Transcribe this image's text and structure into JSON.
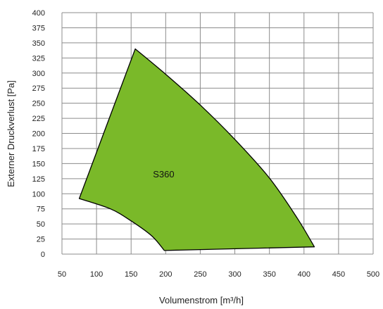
{
  "chart_data": {
    "type": "area",
    "title": "",
    "xlabel": "Volumenstrom [m³/h]",
    "ylabel": "Externer Druckverlust [Pa]",
    "xlim": [
      50,
      500
    ],
    "ylim": [
      0,
      400
    ],
    "x_ticks": [
      50,
      100,
      150,
      200,
      250,
      300,
      350,
      400,
      450,
      500
    ],
    "y_ticks": [
      0,
      25,
      50,
      75,
      100,
      125,
      150,
      175,
      200,
      225,
      250,
      275,
      300,
      325,
      350,
      375,
      400
    ],
    "grid": true,
    "legend": "none",
    "series": [
      {
        "name": "S360",
        "color": "#7ab929",
        "outline_color": "#000000",
        "points": [
          {
            "x": 156,
            "y": 340
          },
          {
            "x": 200,
            "y": 298
          },
          {
            "x": 250,
            "y": 247
          },
          {
            "x": 300,
            "y": 190
          },
          {
            "x": 350,
            "y": 126
          },
          {
            "x": 390,
            "y": 60
          },
          {
            "x": 415,
            "y": 12
          },
          {
            "x": 198,
            "y": 6
          },
          {
            "x": 180,
            "y": 30
          },
          {
            "x": 150,
            "y": 55
          },
          {
            "x": 120,
            "y": 75
          },
          {
            "x": 75,
            "y": 92
          }
        ]
      }
    ]
  }
}
